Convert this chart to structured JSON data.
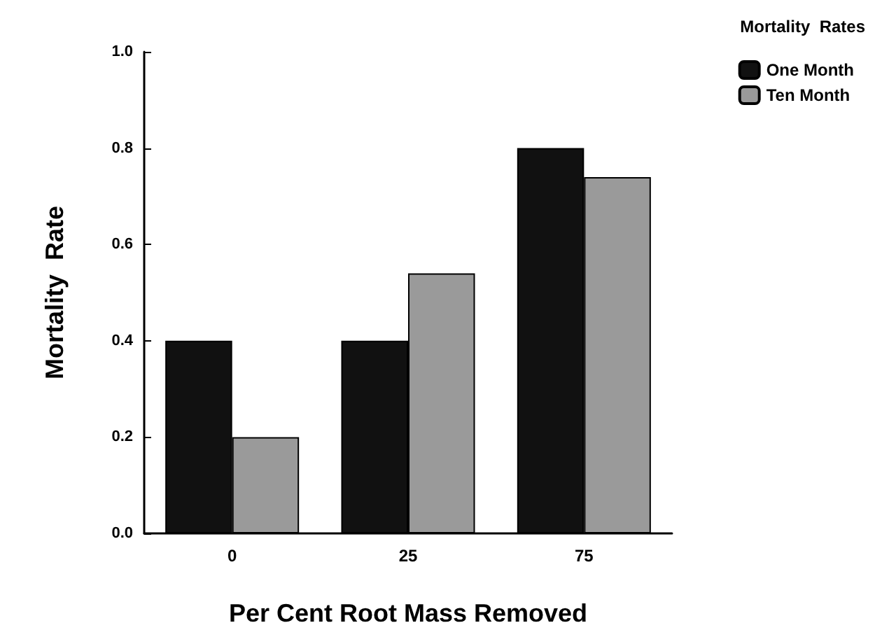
{
  "chart_data": {
    "type": "bar",
    "xlabel": "Per Cent Root Mass Removed",
    "ylabel": "Mortality  Rate",
    "legend_title": "Mortality  Rates",
    "categories": [
      "0",
      "25",
      "75"
    ],
    "series": [
      {
        "name": "One Month",
        "color": "#111111",
        "values": [
          0.4,
          0.4,
          0.8
        ]
      },
      {
        "name": "Ten Month",
        "color": "#9a9a9a",
        "values": [
          0.2,
          0.54,
          0.74
        ]
      }
    ],
    "ylim": [
      0,
      1
    ],
    "yticks": [
      {
        "value": 0,
        "label": "0.0"
      },
      {
        "value": 0.2,
        "label": "0.2"
      },
      {
        "value": 0.4,
        "label": "0.4"
      },
      {
        "value": 0.6,
        "label": "0.6"
      },
      {
        "value": 0.8,
        "label": "0.8"
      },
      {
        "value": 1,
        "label": "1.0"
      }
    ],
    "grid": false,
    "legend": "top right"
  }
}
